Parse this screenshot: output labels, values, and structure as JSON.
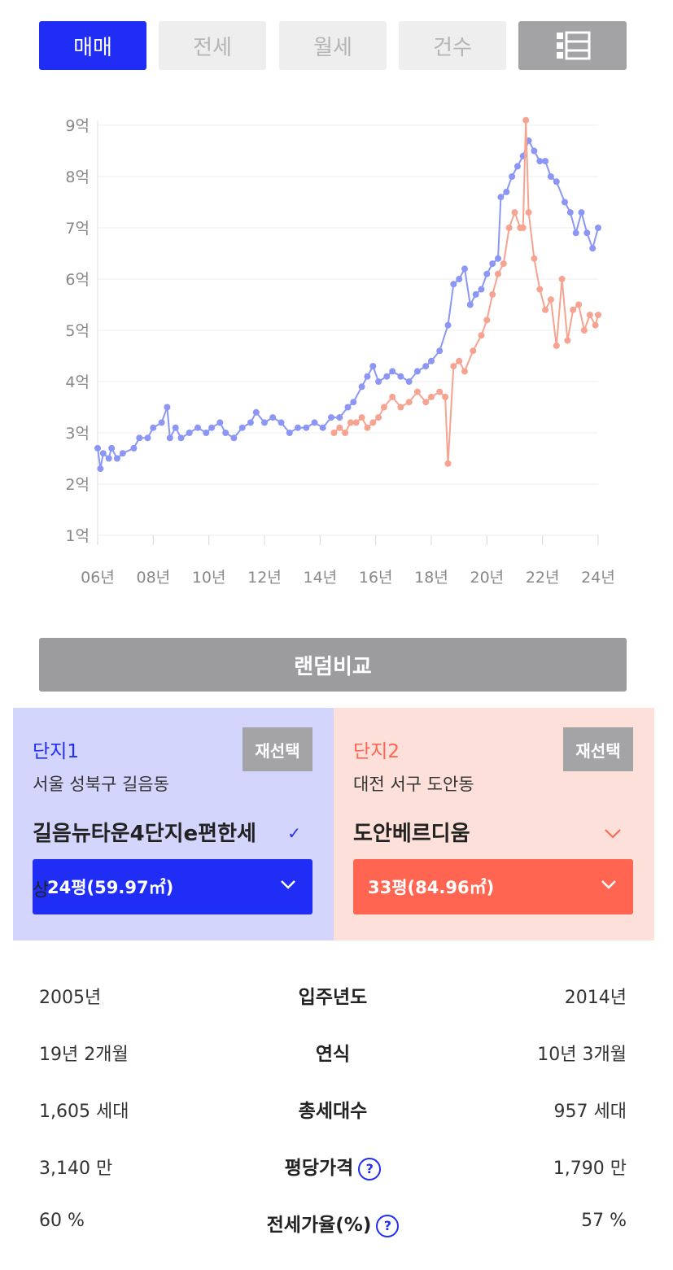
{
  "tabs": [
    {
      "label": "매매",
      "active": true
    },
    {
      "label": "전세",
      "active": false
    },
    {
      "label": "월세",
      "active": false
    },
    {
      "label": "건수",
      "active": false
    }
  ],
  "list_icon": "list-view-icon",
  "colors": {
    "series1": "#8c97f5",
    "series2": "#f7a391",
    "accent_blue": "#1f2df5",
    "accent_red": "#ff6550"
  },
  "chart_data": {
    "type": "line",
    "y_ticks": [
      "1억",
      "2억",
      "3억",
      "4억",
      "5억",
      "6억",
      "7억",
      "8억",
      "9억"
    ],
    "x_ticks": [
      "06년",
      "08년",
      "10년",
      "12년",
      "14년",
      "16년",
      "18년",
      "20년",
      "22년",
      "24년"
    ],
    "ylim": [
      1,
      9
    ],
    "xlim": [
      2006,
      2024
    ],
    "grid": true,
    "series": [
      {
        "color": "#8c97f5",
        "points": [
          [
            2006.0,
            2.7
          ],
          [
            2006.1,
            2.3
          ],
          [
            2006.2,
            2.6
          ],
          [
            2006.4,
            2.5
          ],
          [
            2006.5,
            2.7
          ],
          [
            2006.7,
            2.5
          ],
          [
            2006.9,
            2.6
          ],
          [
            2007.3,
            2.7
          ],
          [
            2007.5,
            2.9
          ],
          [
            2007.8,
            2.9
          ],
          [
            2008.0,
            3.1
          ],
          [
            2008.3,
            3.2
          ],
          [
            2008.5,
            3.5
          ],
          [
            2008.6,
            2.9
          ],
          [
            2008.8,
            3.1
          ],
          [
            2009.0,
            2.9
          ],
          [
            2009.3,
            3.0
          ],
          [
            2009.6,
            3.1
          ],
          [
            2009.9,
            3.0
          ],
          [
            2010.1,
            3.1
          ],
          [
            2010.4,
            3.2
          ],
          [
            2010.6,
            3.0
          ],
          [
            2010.9,
            2.9
          ],
          [
            2011.2,
            3.1
          ],
          [
            2011.5,
            3.2
          ],
          [
            2011.7,
            3.4
          ],
          [
            2012.0,
            3.2
          ],
          [
            2012.3,
            3.3
          ],
          [
            2012.6,
            3.2
          ],
          [
            2012.9,
            3.0
          ],
          [
            2013.2,
            3.1
          ],
          [
            2013.5,
            3.1
          ],
          [
            2013.8,
            3.2
          ],
          [
            2014.1,
            3.1
          ],
          [
            2014.4,
            3.3
          ],
          [
            2014.7,
            3.3
          ],
          [
            2015.0,
            3.5
          ],
          [
            2015.2,
            3.6
          ],
          [
            2015.5,
            3.9
          ],
          [
            2015.7,
            4.1
          ],
          [
            2015.9,
            4.3
          ],
          [
            2016.1,
            4.0
          ],
          [
            2016.4,
            4.1
          ],
          [
            2016.6,
            4.2
          ],
          [
            2016.9,
            4.1
          ],
          [
            2017.2,
            4.0
          ],
          [
            2017.5,
            4.2
          ],
          [
            2017.8,
            4.3
          ],
          [
            2018.0,
            4.4
          ],
          [
            2018.3,
            4.6
          ],
          [
            2018.6,
            5.1
          ],
          [
            2018.8,
            5.9
          ],
          [
            2019.0,
            6.0
          ],
          [
            2019.2,
            6.2
          ],
          [
            2019.4,
            5.5
          ],
          [
            2019.6,
            5.7
          ],
          [
            2019.8,
            5.8
          ],
          [
            2020.0,
            6.1
          ],
          [
            2020.2,
            6.3
          ],
          [
            2020.4,
            6.4
          ],
          [
            2020.5,
            7.6
          ],
          [
            2020.7,
            7.7
          ],
          [
            2020.9,
            8.0
          ],
          [
            2021.1,
            8.2
          ],
          [
            2021.3,
            8.4
          ],
          [
            2021.5,
            8.7
          ],
          [
            2021.7,
            8.5
          ],
          [
            2021.9,
            8.3
          ],
          [
            2022.1,
            8.3
          ],
          [
            2022.3,
            8.0
          ],
          [
            2022.5,
            7.9
          ],
          [
            2022.8,
            7.5
          ],
          [
            2023.0,
            7.3
          ],
          [
            2023.2,
            6.9
          ],
          [
            2023.4,
            7.3
          ],
          [
            2023.6,
            6.9
          ],
          [
            2023.8,
            6.6
          ],
          [
            2024.0,
            7.0
          ]
        ]
      },
      {
        "color": "#f7a391",
        "points": [
          [
            2014.5,
            3.0
          ],
          [
            2014.7,
            3.1
          ],
          [
            2014.9,
            3.0
          ],
          [
            2015.1,
            3.2
          ],
          [
            2015.3,
            3.2
          ],
          [
            2015.5,
            3.3
          ],
          [
            2015.7,
            3.1
          ],
          [
            2015.9,
            3.2
          ],
          [
            2016.1,
            3.3
          ],
          [
            2016.3,
            3.5
          ],
          [
            2016.6,
            3.7
          ],
          [
            2016.9,
            3.5
          ],
          [
            2017.2,
            3.6
          ],
          [
            2017.5,
            3.8
          ],
          [
            2017.8,
            3.6
          ],
          [
            2018.0,
            3.7
          ],
          [
            2018.3,
            3.8
          ],
          [
            2018.5,
            3.7
          ],
          [
            2018.6,
            2.4
          ],
          [
            2018.8,
            4.3
          ],
          [
            2019.0,
            4.4
          ],
          [
            2019.2,
            4.2
          ],
          [
            2019.5,
            4.6
          ],
          [
            2019.8,
            4.9
          ],
          [
            2020.0,
            5.2
          ],
          [
            2020.2,
            5.7
          ],
          [
            2020.4,
            6.1
          ],
          [
            2020.6,
            6.3
          ],
          [
            2020.8,
            7.0
          ],
          [
            2021.0,
            7.3
          ],
          [
            2021.2,
            7.0
          ],
          [
            2021.3,
            7.0
          ],
          [
            2021.4,
            9.1
          ],
          [
            2021.5,
            7.3
          ],
          [
            2021.7,
            6.4
          ],
          [
            2021.9,
            5.8
          ],
          [
            2022.1,
            5.4
          ],
          [
            2022.3,
            5.6
          ],
          [
            2022.5,
            4.7
          ],
          [
            2022.7,
            6.0
          ],
          [
            2022.9,
            4.8
          ],
          [
            2023.1,
            5.4
          ],
          [
            2023.3,
            5.5
          ],
          [
            2023.5,
            5.0
          ],
          [
            2023.7,
            5.3
          ],
          [
            2023.9,
            5.1
          ],
          [
            2024.0,
            5.3
          ]
        ]
      }
    ]
  },
  "random_compare_label": "랜덤비교",
  "complex1": {
    "title": "단지1",
    "reselect_label": "재선택",
    "address": "서울 성북구 길음동",
    "name": "길음뉴타운4단지e편한세",
    "name_overflow": "상",
    "size": "24평(59.97㎡)"
  },
  "complex2": {
    "title": "단지2",
    "reselect_label": "재선택",
    "address": "대전 서구 도안동",
    "name": "도안베르디움",
    "size": "33평(84.96㎡)"
  },
  "info_rows": [
    {
      "label": "입주년도",
      "left": "2005년",
      "right": "2014년",
      "help": false
    },
    {
      "label": "연식",
      "left": "19년 2개월",
      "right": "10년 3개월",
      "help": false
    },
    {
      "label": "총세대수",
      "left": "1,605 세대",
      "right": "957 세대",
      "help": false
    },
    {
      "label": "평당가격",
      "left": "3,140 만",
      "right": "1,790 만",
      "help": true
    },
    {
      "label": "전세가율(%)",
      "left": "60 %",
      "right": "57 %",
      "help": true
    }
  ],
  "help_glyph": "?"
}
